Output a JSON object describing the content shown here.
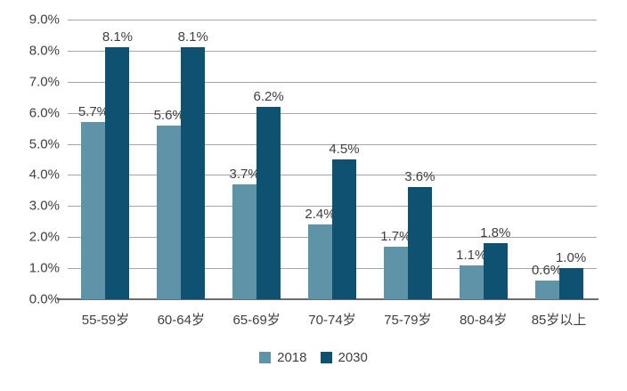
{
  "chart_data": {
    "type": "bar",
    "title": "",
    "xlabel": "",
    "ylabel": "",
    "grid": true,
    "legend_position": "bottom",
    "value_suffix": "%",
    "categories": [
      "55-59岁",
      "60-64岁",
      "65-69岁",
      "70-74岁",
      "75-79岁",
      "80-84岁",
      "85岁以上"
    ],
    "series": [
      {
        "name": "2018",
        "color": "#5E93A8",
        "values": [
          5.7,
          5.6,
          3.7,
          2.4,
          1.7,
          1.1,
          0.6
        ],
        "data_labels": [
          "5.7%",
          "5.6%",
          "3.7%",
          "2.4%",
          "1.7%",
          "1.1%",
          "0.6%"
        ]
      },
      {
        "name": "2030",
        "color": "#0E5170",
        "values": [
          8.1,
          8.1,
          6.2,
          4.5,
          3.6,
          1.8,
          1.0
        ],
        "data_labels": [
          "8.1%",
          "8.1%",
          "6.2%",
          "4.5%",
          "3.6%",
          "1.8%",
          "1.0%"
        ]
      }
    ],
    "y_axis": {
      "min": 0,
      "max": 9,
      "step": 1,
      "ticks": [
        {
          "value": 9,
          "label": "9.0%"
        },
        {
          "value": 8,
          "label": "8.0%"
        },
        {
          "value": 7,
          "label": "7.0%"
        },
        {
          "value": 6,
          "label": "6.0%"
        },
        {
          "value": 5,
          "label": "5.0%"
        },
        {
          "value": 4,
          "label": "4.0%"
        },
        {
          "value": 3,
          "label": "3.0%"
        },
        {
          "value": 2,
          "label": "2.0%"
        },
        {
          "value": 1,
          "label": "1.0%"
        },
        {
          "value": 0,
          "label": "0.0%"
        }
      ]
    },
    "colors": {
      "gridline": "#a6a6a6",
      "axis_line": "#6b6b6b",
      "text": "#3f3f3f",
      "background": "#ffffff"
    }
  }
}
